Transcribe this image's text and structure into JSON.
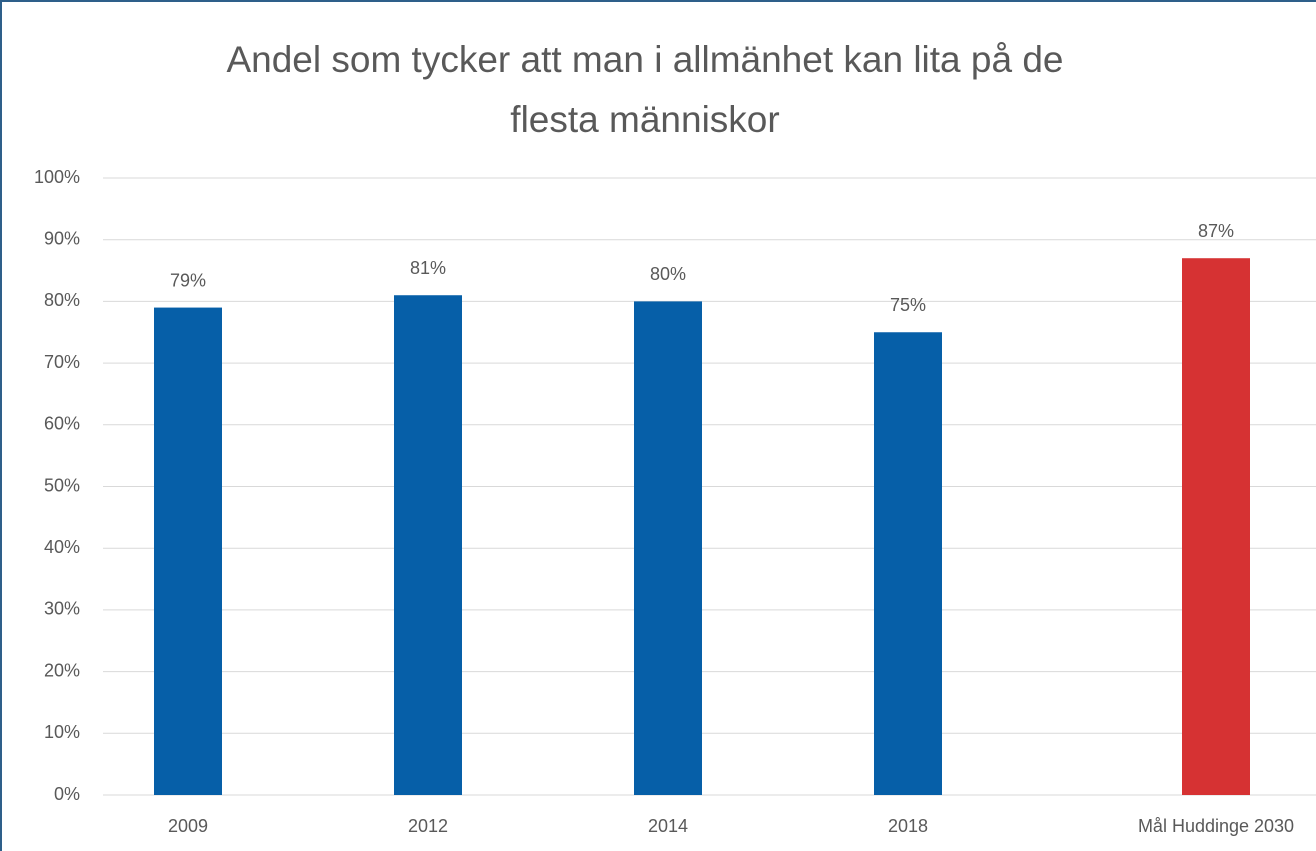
{
  "chart_data": {
    "type": "bar",
    "title_lines": [
      "Andel som tycker att man i allmänhet kan lita på de",
      "flesta människor"
    ],
    "categories": [
      "2009",
      "2012",
      "2014",
      "2018",
      "Mål Huddinge 2030"
    ],
    "values": [
      79,
      81,
      80,
      75,
      87
    ],
    "value_labels": [
      "79%",
      "81%",
      "80%",
      "75%",
      "87%"
    ],
    "colors": [
      "#065fa8",
      "#065fa8",
      "#065fa8",
      "#065fa8",
      "#d63233"
    ],
    "ylim": [
      0,
      100
    ],
    "yticks": [
      {
        "value": 0,
        "label": "0%"
      },
      {
        "value": 10,
        "label": "10%"
      },
      {
        "value": 20,
        "label": "20%"
      },
      {
        "value": 30,
        "label": "30%"
      },
      {
        "value": 40,
        "label": "40%"
      },
      {
        "value": 50,
        "label": "50%"
      },
      {
        "value": 60,
        "label": "60%"
      },
      {
        "value": 70,
        "label": "70%"
      },
      {
        "value": 80,
        "label": "80%"
      },
      {
        "value": 90,
        "label": "90%"
      },
      {
        "value": 100,
        "label": "100%"
      }
    ],
    "grid": true
  }
}
